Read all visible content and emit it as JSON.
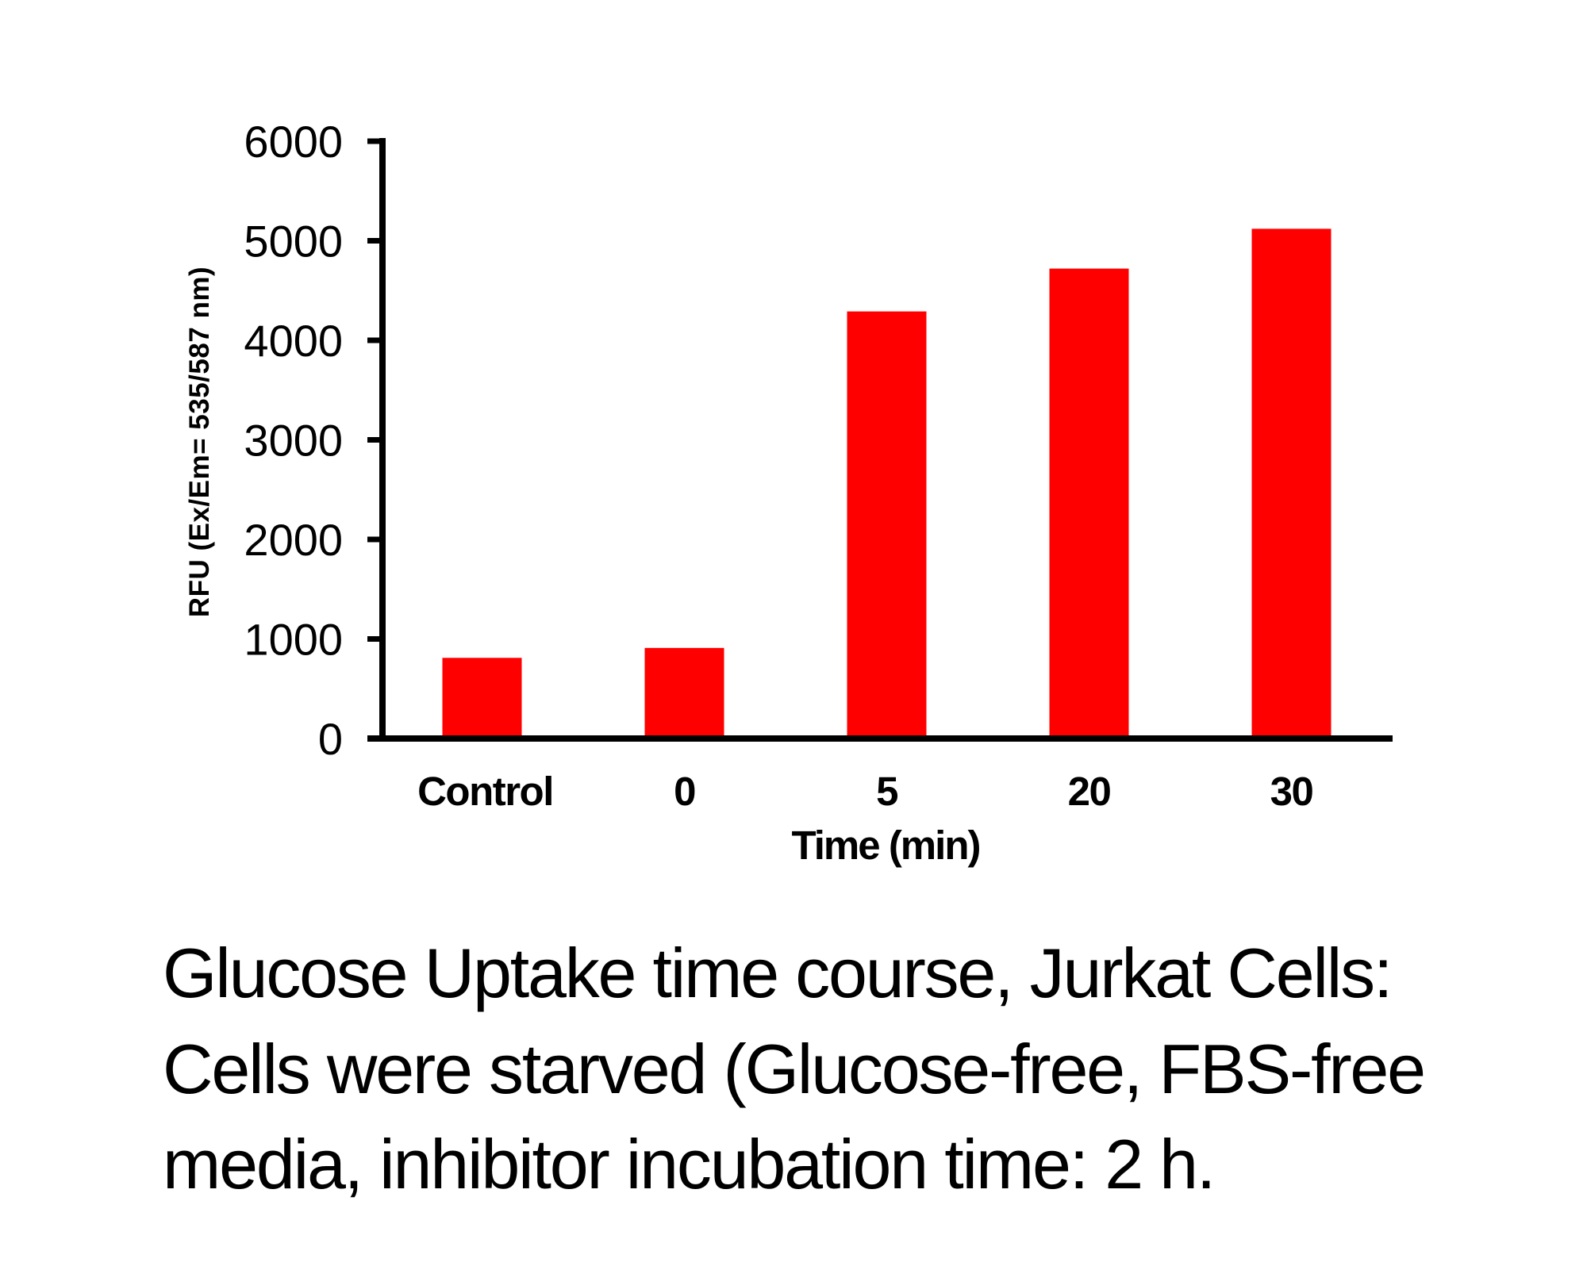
{
  "colors": {
    "bar": "#ff0000",
    "axis": "#000000",
    "text": "#000000",
    "background": "#ffffff"
  },
  "chart_data": {
    "type": "bar",
    "title": "",
    "xlabel": "Time (min)",
    "ylabel": "RFU (Ex/Em= 535/587 nm)",
    "categories": [
      "Control",
      "0",
      "5",
      "20",
      "30"
    ],
    "values": [
      810,
      910,
      4290,
      4720,
      5120
    ],
    "series": [
      {
        "name": "RFU",
        "values": [
          810,
          910,
          4290,
          4720,
          5120
        ],
        "color": "#ff0000"
      }
    ],
    "ylim": [
      0,
      6000
    ],
    "yticks": [
      0,
      1000,
      2000,
      3000,
      4000,
      5000,
      6000
    ],
    "ytick_labels": [
      "0",
      "1000",
      "2000",
      "3000",
      "4000",
      "5000",
      "6000"
    ],
    "grid": false,
    "legend": "none"
  },
  "caption": {
    "lines": [
      "Glucose Uptake time course, Jurkat Cells:",
      "Cells were starved (Glucose-free, FBS-free",
      "media, inhibitor incubation time: 2 h."
    ]
  }
}
